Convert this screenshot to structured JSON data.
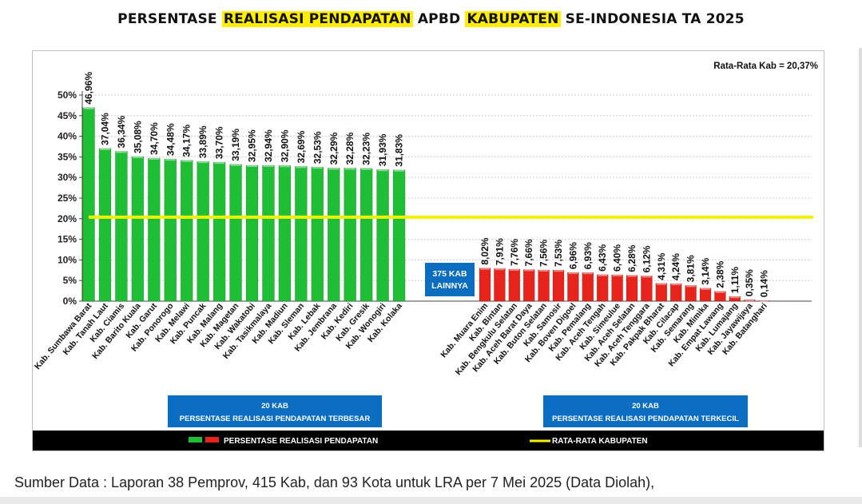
{
  "title": {
    "part1": "PERSENTASE ",
    "part2": "REALISASI PENDAPATAN",
    "part3": " APBD ",
    "part4": "KABUPATEN",
    "part5": " SE-INDONESIA TA 2025"
  },
  "colors": {
    "top_bars": "#1fbf35",
    "bottom_bars": "#e8231b",
    "average_line": "#f2f200",
    "blue_box": "#0a6dbf",
    "legend_bar": "#000000"
  },
  "chart_data": {
    "type": "bar",
    "average_label": "Rata-Rata Kab = 20,37%",
    "average_value": 20.37,
    "ylim": [
      0,
      50
    ],
    "y_ticks": [
      "0%",
      "5%",
      "10%",
      "15%",
      "20%",
      "25%",
      "30%",
      "35%",
      "40%",
      "45%",
      "50%"
    ],
    "grid": true,
    "top_group": {
      "categories": [
        "Kab. Sumbawa Barat",
        "Kab. Tanah Laut",
        "Kab. Ciamis",
        "Kab. Barito Kuala",
        "Kab. Garut",
        "Kab. Ponorogo",
        "Kab. Melawi",
        "Kab. Puncak",
        "Kab. Malang",
        "Kab. Magetan",
        "Kab. Wakatobi",
        "Kab. Tasikmalaya",
        "Kab. Madiun",
        "Kab. Sleman",
        "Kab. Lebak",
        "Kab. Jembrana",
        "Kab. Kediri",
        "Kab. Gresik",
        "Kab. Wonogiri",
        "Kab. Kolaka"
      ],
      "values": [
        46.96,
        37.04,
        36.34,
        35.08,
        34.7,
        34.48,
        34.17,
        33.89,
        33.7,
        33.19,
        32.95,
        32.94,
        32.9,
        32.69,
        32.53,
        32.29,
        32.28,
        32.23,
        31.93,
        31.83
      ],
      "labels": [
        "46,96%",
        "37,04%",
        "36,34%",
        "35,08%",
        "34,70%",
        "34,48%",
        "34,17%",
        "33,89%",
        "33,70%",
        "33,19%",
        "32,95%",
        "32,94%",
        "32,90%",
        "32,69%",
        "32,53%",
        "32,29%",
        "32,28%",
        "32,23%",
        "31,93%",
        "31,83%"
      ]
    },
    "middle_box": [
      "375 KAB",
      "LAINNYA"
    ],
    "bottom_group": {
      "categories": [
        "Kab. Muara Enim",
        "Kab. Bintan",
        "Kab. Bengkulu Selatan",
        "Kab. Aceh Barat Daya",
        "Kab. Buton Selatan",
        "Kab. Samosir",
        "Kab. Boven Digoel",
        "Kab. Pemalang",
        "Kab. Aceh Tengah",
        "Kab. Simeulue",
        "Kab. Aceh Selatan",
        "Kab. Aceh Tenggara",
        "Kab. Pakpak Bharat",
        "Kab. Cilacap",
        "Kab. Semarang",
        "Kab. Mimika",
        "Kab. Empat Lawang",
        "Kab. Lumajang",
        "Kab. Jayawijaya",
        "Kab. Batanghari"
      ],
      "values": [
        8.02,
        7.91,
        7.76,
        7.66,
        7.56,
        7.53,
        6.96,
        6.93,
        6.43,
        6.4,
        6.28,
        6.12,
        4.31,
        4.24,
        3.81,
        3.14,
        2.38,
        1.11,
        0.35,
        0.14
      ],
      "labels": [
        "8,02%",
        "7,91%",
        "7,76%",
        "7,66%",
        "7,56%",
        "7,53%",
        "6,96%",
        "6,93%",
        "6,43%",
        "6,40%",
        "6,28%",
        "6,12%",
        "4,31%",
        "4,24%",
        "3,81%",
        "3,14%",
        "2,38%",
        "1,11%",
        "0,35%",
        "0,14%"
      ]
    },
    "group_boxes": [
      [
        "20 KAB",
        "PERSENTASE REALISASI PENDAPATAN TERBESAR"
      ],
      [
        "20 KAB",
        "PERSENTASE REALISASI PENDAPATAN TERKECIL"
      ]
    ],
    "legend": {
      "bars": "PERSENTASE REALISASI PENDAPATAN",
      "line": "RATA-RATA KABUPATEN"
    }
  },
  "source": "Sumber Data : Laporan 38 Pemprov, 415 Kab, dan 93 Kota untuk LRA per 7 Mei 2025 (Data Diolah),"
}
